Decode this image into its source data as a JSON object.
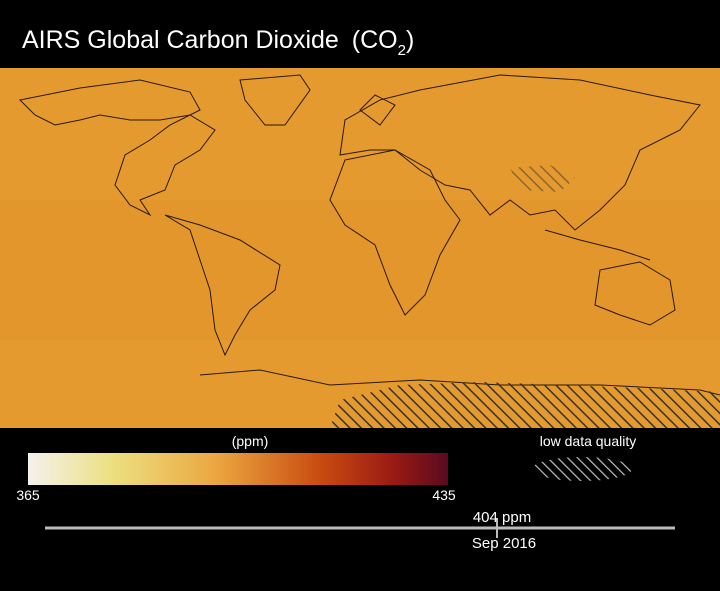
{
  "title": {
    "text": "AIRS Global Carbon Dioxide",
    "formula": {
      "open": "(CO",
      "subscript": "2",
      "close": ")"
    }
  },
  "colorbar": {
    "unit_label": "(ppm)",
    "min": 365,
    "max": 435
  },
  "legend": {
    "label": "low data quality"
  },
  "timeline": {
    "value_label": "404 ppm",
    "date": "Sep 2016"
  }
}
